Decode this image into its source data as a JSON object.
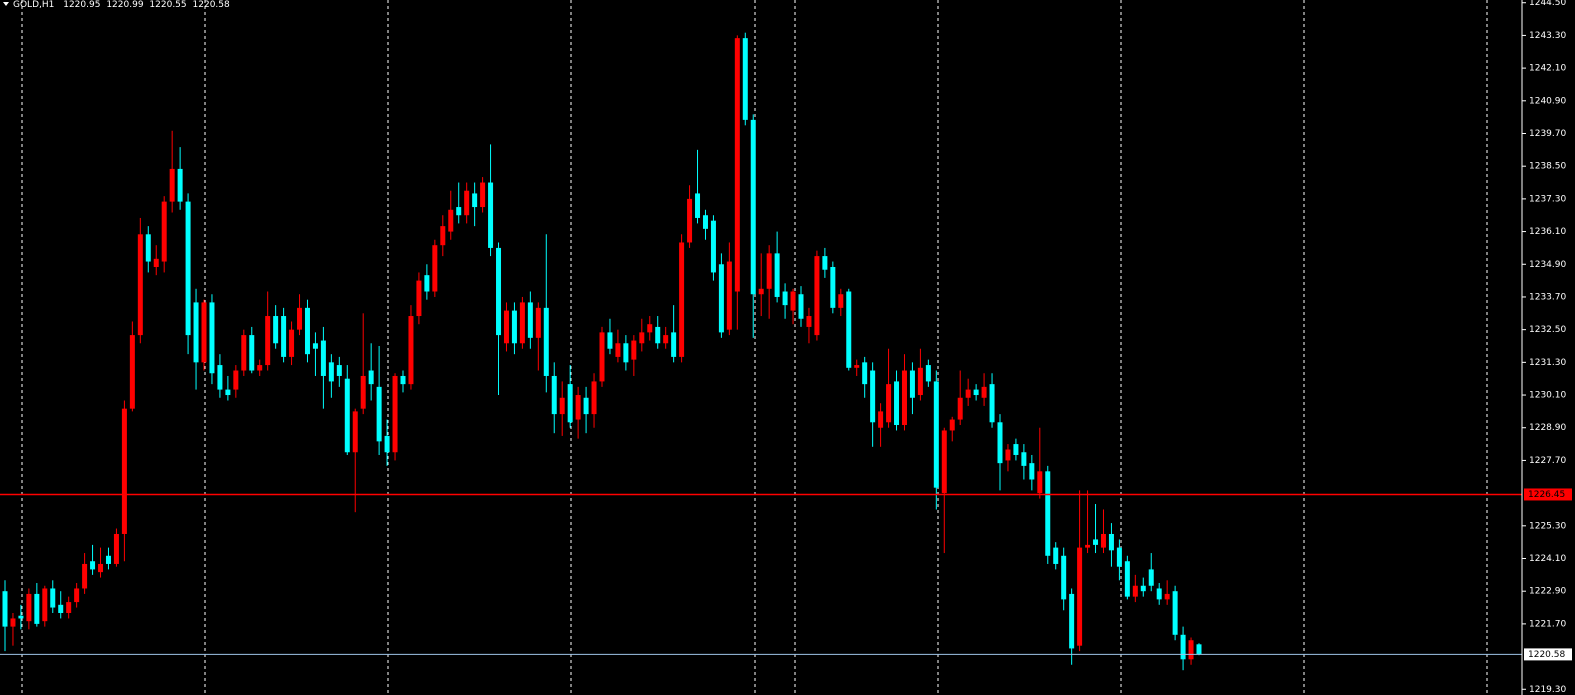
{
  "chart_data": {
    "type": "candlestick",
    "symbol": "GOLD,H1",
    "up_color": "#ff0000",
    "down_color": "#00ffff",
    "ylim": [
      1219.2,
      1244.6
    ],
    "yticks": [
      {
        "value": 1244.5,
        "label": "1244.50"
      },
      {
        "value": 1243.3,
        "label": "1243.30"
      },
      {
        "value": 1242.1,
        "label": "1242.10"
      },
      {
        "value": 1240.9,
        "label": "1240.90"
      },
      {
        "value": 1239.7,
        "label": "1239.70"
      },
      {
        "value": 1238.5,
        "label": "1238.50"
      },
      {
        "value": 1237.3,
        "label": "1237.30"
      },
      {
        "value": 1236.1,
        "label": "1236.10"
      },
      {
        "value": 1234.9,
        "label": "1234.90"
      },
      {
        "value": 1233.7,
        "label": "1233.70"
      },
      {
        "value": 1232.5,
        "label": "1232.50"
      },
      {
        "value": 1231.3,
        "label": "1231.30"
      },
      {
        "value": 1230.1,
        "label": "1230.10"
      },
      {
        "value": 1228.9,
        "label": "1228.90"
      },
      {
        "value": 1227.7,
        "label": "1227.70"
      },
      {
        "value": 1225.3,
        "label": "1225.30"
      },
      {
        "value": 1224.1,
        "label": "1224.10"
      },
      {
        "value": 1222.9,
        "label": "1222.90"
      },
      {
        "value": 1221.7,
        "label": "1221.70"
      },
      {
        "value": 1219.3,
        "label": "1219.30"
      }
    ],
    "level_line": {
      "value": 1226.45,
      "color": "#ff0000"
    },
    "bid_color": "#9fc5e8",
    "ohlc": [
      [
        1222.9,
        1223.3,
        1220.7,
        1221.6
      ],
      [
        1221.6,
        1222.1,
        1220.9,
        1221.9
      ],
      [
        1222.0,
        1222.4,
        1221.5,
        1221.9
      ],
      [
        1221.8,
        1223.0,
        1221.5,
        1222.8
      ],
      [
        1222.8,
        1223.2,
        1221.6,
        1221.7
      ],
      [
        1221.8,
        1223.1,
        1221.6,
        1223.0
      ],
      [
        1223.0,
        1223.3,
        1222.1,
        1222.3
      ],
      [
        1222.4,
        1222.9,
        1221.9,
        1222.1
      ],
      [
        1222.1,
        1222.7,
        1221.9,
        1222.5
      ],
      [
        1222.5,
        1223.2,
        1222.3,
        1223.0
      ],
      [
        1223.0,
        1224.3,
        1222.8,
        1223.9
      ],
      [
        1224.0,
        1224.6,
        1223.5,
        1223.7
      ],
      [
        1223.6,
        1224.5,
        1223.4,
        1223.9
      ],
      [
        1224.2,
        1224.5,
        1223.7,
        1223.9
      ],
      [
        1223.9,
        1225.2,
        1223.8,
        1225.0
      ],
      [
        1225.0,
        1229.9,
        1224.0,
        1229.6
      ],
      [
        1229.6,
        1232.8,
        1229.5,
        1232.3
      ],
      [
        1232.3,
        1236.6,
        1232.0,
        1236.0
      ],
      [
        1236.0,
        1236.3,
        1234.6,
        1235.0
      ],
      [
        1234.8,
        1235.6,
        1234.5,
        1235.1
      ],
      [
        1235.0,
        1237.4,
        1234.6,
        1237.2
      ],
      [
        1237.2,
        1239.8,
        1236.8,
        1238.4
      ],
      [
        1238.4,
        1239.2,
        1236.9,
        1237.2
      ],
      [
        1237.2,
        1237.5,
        1231.6,
        1232.3
      ],
      [
        1233.5,
        1234.0,
        1230.3,
        1231.3
      ],
      [
        1231.3,
        1233.6,
        1231.0,
        1233.5
      ],
      [
        1233.5,
        1233.8,
        1230.5,
        1230.9
      ],
      [
        1231.2,
        1231.6,
        1230.0,
        1230.3
      ],
      [
        1230.3,
        1230.8,
        1229.9,
        1230.1
      ],
      [
        1230.3,
        1231.2,
        1230.0,
        1231.0
      ],
      [
        1231.0,
        1232.5,
        1230.8,
        1232.3
      ],
      [
        1232.3,
        1232.6,
        1230.9,
        1231.0
      ],
      [
        1231.0,
        1231.4,
        1230.8,
        1231.2
      ],
      [
        1231.2,
        1233.9,
        1231.0,
        1233.0
      ],
      [
        1233.0,
        1233.4,
        1231.8,
        1232.0
      ],
      [
        1233.0,
        1233.3,
        1231.3,
        1231.5
      ],
      [
        1231.5,
        1232.8,
        1231.2,
        1232.5
      ],
      [
        1232.5,
        1233.8,
        1232.3,
        1233.3
      ],
      [
        1233.3,
        1233.6,
        1231.3,
        1231.6
      ],
      [
        1232.0,
        1232.4,
        1230.8,
        1231.8
      ],
      [
        1232.1,
        1232.6,
        1229.6,
        1230.8
      ],
      [
        1231.3,
        1231.6,
        1230.0,
        1230.6
      ],
      [
        1231.2,
        1231.5,
        1230.4,
        1230.8
      ],
      [
        1230.7,
        1231.2,
        1227.9,
        1228.0
      ],
      [
        1228.0,
        1229.6,
        1225.8,
        1229.5
      ],
      [
        1229.6,
        1233.1,
        1229.4,
        1230.8
      ],
      [
        1231.0,
        1232.0,
        1229.9,
        1230.5
      ],
      [
        1230.4,
        1231.9,
        1227.9,
        1228.4
      ],
      [
        1228.6,
        1229.2,
        1227.5,
        1228.0
      ],
      [
        1228.0,
        1230.9,
        1227.7,
        1230.8
      ],
      [
        1230.8,
        1231.0,
        1230.2,
        1230.5
      ],
      [
        1230.5,
        1233.4,
        1230.3,
        1233.0
      ],
      [
        1233.0,
        1234.6,
        1232.7,
        1234.3
      ],
      [
        1234.5,
        1234.9,
        1233.6,
        1233.9
      ],
      [
        1233.9,
        1235.8,
        1233.7,
        1235.6
      ],
      [
        1235.6,
        1236.7,
        1235.2,
        1236.3
      ],
      [
        1236.1,
        1237.6,
        1235.8,
        1236.9
      ],
      [
        1237.0,
        1237.9,
        1236.4,
        1236.7
      ],
      [
        1236.7,
        1237.9,
        1236.4,
        1237.6
      ],
      [
        1237.5,
        1237.9,
        1236.3,
        1237.0
      ],
      [
        1237.0,
        1238.1,
        1236.8,
        1237.9
      ],
      [
        1237.9,
        1239.3,
        1235.2,
        1235.5
      ],
      [
        1235.5,
        1235.7,
        1230.1,
        1232.3
      ],
      [
        1232.0,
        1233.5,
        1231.7,
        1233.2
      ],
      [
        1233.2,
        1233.5,
        1231.6,
        1232.0
      ],
      [
        1232.0,
        1233.7,
        1231.8,
        1233.5
      ],
      [
        1233.5,
        1233.9,
        1231.8,
        1232.2
      ],
      [
        1232.2,
        1233.5,
        1231.0,
        1233.3
      ],
      [
        1233.3,
        1236.0,
        1230.2,
        1230.8
      ],
      [
        1230.8,
        1231.3,
        1228.7,
        1229.4
      ],
      [
        1229.4,
        1230.6,
        1228.6,
        1230.0
      ],
      [
        1230.5,
        1231.2,
        1228.9,
        1229.1
      ],
      [
        1229.2,
        1230.4,
        1228.5,
        1230.1
      ],
      [
        1230.0,
        1230.4,
        1228.7,
        1229.4
      ],
      [
        1229.4,
        1230.9,
        1228.9,
        1230.6
      ],
      [
        1230.6,
        1232.6,
        1230.4,
        1232.4
      ],
      [
        1232.4,
        1232.9,
        1231.6,
        1231.8
      ],
      [
        1231.5,
        1232.5,
        1231.3,
        1232.0
      ],
      [
        1232.0,
        1232.3,
        1231.0,
        1231.3
      ],
      [
        1231.4,
        1232.3,
        1230.8,
        1232.1
      ],
      [
        1232.0,
        1232.9,
        1231.7,
        1232.4
      ],
      [
        1232.4,
        1233.0,
        1232.1,
        1232.7
      ],
      [
        1232.6,
        1233.0,
        1231.8,
        1232.0
      ],
      [
        1232.0,
        1232.6,
        1231.8,
        1232.3
      ],
      [
        1232.4,
        1233.4,
        1231.3,
        1231.5
      ],
      [
        1231.5,
        1236.0,
        1231.3,
        1235.7
      ],
      [
        1235.7,
        1237.8,
        1235.5,
        1237.3
      ],
      [
        1237.5,
        1239.1,
        1236.4,
        1236.6
      ],
      [
        1236.7,
        1236.9,
        1235.8,
        1236.2
      ],
      [
        1236.5,
        1236.7,
        1234.3,
        1234.6
      ],
      [
        1234.9,
        1235.3,
        1232.2,
        1232.4
      ],
      [
        1232.5,
        1235.7,
        1232.3,
        1235.0
      ],
      [
        1233.9,
        1243.3,
        1232.5,
        1243.2
      ],
      [
        1243.2,
        1243.4,
        1240.0,
        1240.2
      ],
      [
        1240.2,
        1240.4,
        1232.2,
        1233.8
      ],
      [
        1233.8,
        1235.3,
        1233.0,
        1234.0
      ],
      [
        1234.0,
        1235.6,
        1232.9,
        1235.3
      ],
      [
        1235.3,
        1236.1,
        1233.5,
        1233.7
      ],
      [
        1233.9,
        1234.2,
        1232.9,
        1233.4
      ],
      [
        1233.2,
        1234.0,
        1232.7,
        1233.9
      ],
      [
        1233.8,
        1234.1,
        1232.6,
        1232.9
      ],
      [
        1232.6,
        1233.3,
        1232.0,
        1233.0
      ],
      [
        1232.3,
        1235.4,
        1232.1,
        1235.2
      ],
      [
        1235.2,
        1235.5,
        1234.4,
        1234.7
      ],
      [
        1234.8,
        1235.0,
        1233.1,
        1233.3
      ],
      [
        1233.3,
        1234.0,
        1233.0,
        1233.8
      ],
      [
        1233.9,
        1234.0,
        1231.0,
        1231.1
      ],
      [
        1231.1,
        1231.4,
        1230.8,
        1231.2
      ],
      [
        1231.3,
        1231.5,
        1230.0,
        1230.5
      ],
      [
        1231.0,
        1231.3,
        1228.2,
        1229.1
      ],
      [
        1228.9,
        1229.8,
        1228.2,
        1229.5
      ],
      [
        1229.1,
        1231.8,
        1228.9,
        1230.5
      ],
      [
        1230.6,
        1231.0,
        1228.8,
        1229.0
      ],
      [
        1229.0,
        1231.6,
        1228.8,
        1231.0
      ],
      [
        1231.0,
        1231.3,
        1229.4,
        1230.0
      ],
      [
        1230.1,
        1231.8,
        1229.9,
        1231.1
      ],
      [
        1231.2,
        1231.4,
        1230.4,
        1230.6
      ],
      [
        1230.6,
        1231.0,
        1225.9,
        1226.7
      ],
      [
        1226.5,
        1228.9,
        1224.3,
        1228.8
      ],
      [
        1228.8,
        1229.3,
        1228.4,
        1229.2
      ],
      [
        1229.2,
        1231.0,
        1229.0,
        1230.0
      ],
      [
        1230.0,
        1230.7,
        1229.7,
        1230.3
      ],
      [
        1230.3,
        1230.5,
        1229.9,
        1230.1
      ],
      [
        1230.0,
        1230.9,
        1229.7,
        1230.4
      ],
      [
        1230.5,
        1230.9,
        1228.9,
        1229.1
      ],
      [
        1229.1,
        1229.4,
        1226.6,
        1227.6
      ],
      [
        1227.7,
        1228.3,
        1227.3,
        1228.1
      ],
      [
        1228.3,
        1228.5,
        1227.7,
        1227.9
      ],
      [
        1228.0,
        1228.3,
        1227.0,
        1227.5
      ],
      [
        1227.6,
        1227.9,
        1226.6,
        1227.0
      ],
      [
        1226.5,
        1228.9,
        1226.3,
        1227.3
      ],
      [
        1227.3,
        1227.5,
        1223.9,
        1224.2
      ],
      [
        1224.5,
        1224.7,
        1223.7,
        1223.9
      ],
      [
        1224.2,
        1224.5,
        1222.2,
        1222.6
      ],
      [
        1222.8,
        1223.0,
        1220.2,
        1220.8
      ],
      [
        1220.9,
        1226.6,
        1220.7,
        1224.5
      ],
      [
        1224.5,
        1226.6,
        1224.3,
        1224.6
      ],
      [
        1224.8,
        1226.1,
        1224.3,
        1224.6
      ],
      [
        1224.5,
        1225.9,
        1224.3,
        1225.0
      ],
      [
        1225.0,
        1225.4,
        1223.8,
        1224.4
      ],
      [
        1224.5,
        1224.8,
        1223.3,
        1223.8
      ],
      [
        1224.0,
        1224.2,
        1222.6,
        1222.7
      ],
      [
        1222.7,
        1223.5,
        1222.5,
        1223.1
      ],
      [
        1223.1,
        1223.4,
        1222.7,
        1222.9
      ],
      [
        1223.7,
        1224.3,
        1222.9,
        1223.1
      ],
      [
        1223.0,
        1223.2,
        1222.4,
        1222.6
      ],
      [
        1222.6,
        1223.3,
        1222.4,
        1222.8
      ],
      [
        1222.9,
        1223.1,
        1221.1,
        1221.3
      ],
      [
        1221.3,
        1221.6,
        1220.0,
        1220.4
      ],
      [
        1220.4,
        1221.2,
        1220.2,
        1221.1
      ],
      [
        1220.95,
        1220.99,
        1220.55,
        1220.58
      ]
    ]
  }
}
